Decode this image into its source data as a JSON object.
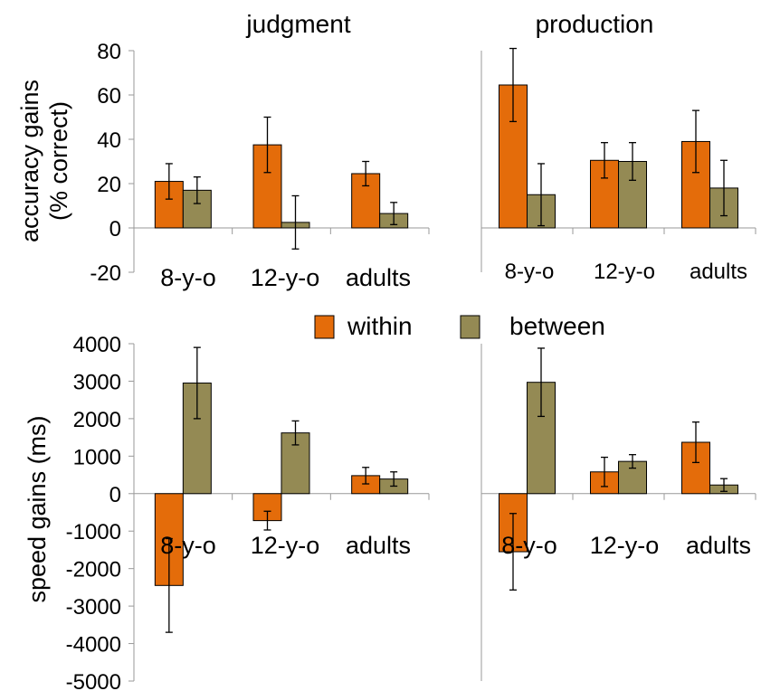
{
  "colors": {
    "within": "#E46C0A",
    "between": "#948A54",
    "axis": "#999999",
    "bar_stroke": "#000000"
  },
  "legend": [
    {
      "key": "within",
      "label": "within"
    },
    {
      "key": "between",
      "label": "between"
    }
  ],
  "chart_data": [
    {
      "type": "bar",
      "title": "judgment",
      "ylabel": [
        "accuracy gains",
        "(% correct)"
      ],
      "ylim": [
        -20,
        80
      ],
      "yticks": [
        "-20",
        "0",
        "20",
        "40",
        "60",
        "80"
      ],
      "categories": [
        "8-y-o",
        "12-y-o",
        "adults"
      ],
      "series": [
        {
          "name": "within",
          "values": [
            21,
            37.5,
            24.5
          ],
          "errors": [
            8,
            12.5,
            5.5
          ]
        },
        {
          "name": "between",
          "values": [
            17,
            2.5,
            6.5
          ],
          "errors": [
            6,
            12,
            5
          ]
        }
      ]
    },
    {
      "type": "bar",
      "title": "production",
      "ylim": [
        -20,
        80
      ],
      "categories": [
        "8-y-o",
        "12-y-o",
        "adults"
      ],
      "series": [
        {
          "name": "within",
          "values": [
            64.5,
            30.5,
            39
          ],
          "errors": [
            16.5,
            8,
            14
          ]
        },
        {
          "name": "between",
          "values": [
            15,
            30,
            18
          ],
          "errors": [
            14,
            8.5,
            12.5
          ]
        }
      ]
    },
    {
      "type": "bar",
      "ylabel": "speed gains (ms)",
      "ylim": [
        -5000,
        4000
      ],
      "yticks": [
        "-5000",
        "-4000",
        "-3000",
        "-2000",
        "-1000",
        "0",
        "1000",
        "2000",
        "3000",
        "4000"
      ],
      "categories": [
        "8-y-o",
        "12-y-o",
        "adults"
      ],
      "series": [
        {
          "name": "within",
          "values": [
            -2450,
            -720,
            480
          ],
          "errors": [
            1250,
            250,
            220
          ]
        },
        {
          "name": "between",
          "values": [
            2950,
            1620,
            390
          ],
          "errors": [
            950,
            320,
            190
          ]
        }
      ]
    },
    {
      "type": "bar",
      "ylim": [
        -5000,
        4000
      ],
      "categories": [
        "8-y-o",
        "12-y-o",
        "adults"
      ],
      "series": [
        {
          "name": "within",
          "values": [
            -1550,
            580,
            1370
          ],
          "errors": [
            1020,
            390,
            540
          ]
        },
        {
          "name": "between",
          "values": [
            2970,
            860,
            230
          ],
          "errors": [
            910,
            180,
            170
          ]
        }
      ]
    }
  ]
}
